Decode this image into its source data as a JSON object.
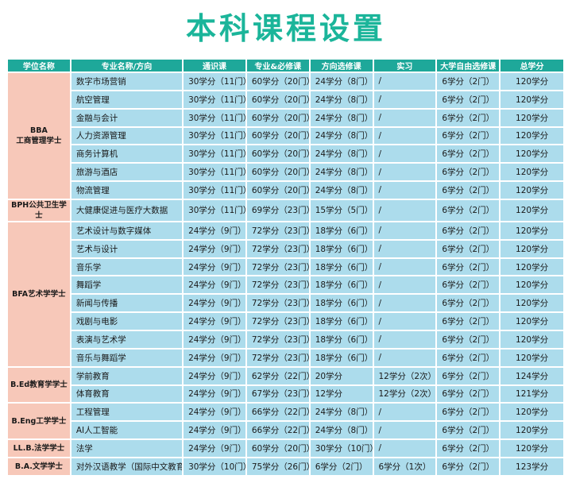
{
  "title": "本科课程设置",
  "headers": [
    "学位名称",
    "专业名称/方向",
    "通识课",
    "专业&必修课",
    "方向选修课",
    "实习",
    "大学自由选修课",
    "总学分"
  ],
  "degrees": [
    {
      "lines": [
        "BBA",
        "工商管理学士"
      ],
      "rows": [
        [
          "数字市场营销",
          "30学分（11门）",
          "60学分（20门）",
          "24学分（8门）",
          "/",
          "6学分（2门）",
          "120学分"
        ],
        [
          "航空管理",
          "30学分（11门）",
          "60学分（20门）",
          "24学分（8门）",
          "/",
          "6学分（2门）",
          "120学分"
        ],
        [
          "金融与会计",
          "30学分（11门）",
          "60学分（20门）",
          "24学分（8门）",
          "/",
          "6学分（2门）",
          "120学分"
        ],
        [
          "人力资源管理",
          "30学分（11门）",
          "60学分（20门）",
          "24学分（8门）",
          "/",
          "6学分（2门）",
          "120学分"
        ],
        [
          "商务计算机",
          "30学分（11门）",
          "60学分（20门）",
          "24学分（8门）",
          "/",
          "6学分（2门）",
          "120学分"
        ],
        [
          "旅游与酒店",
          "30学分（11门）",
          "60学分（20门）",
          "24学分（8门）",
          "/",
          "6学分（2门）",
          "120学分"
        ],
        [
          "物流管理",
          "30学分（11门）",
          "60学分（20门）",
          "24学分（8门）",
          "/",
          "6学分（2门）",
          "120学分"
        ]
      ]
    },
    {
      "lines": [
        "BPH公共卫生学士"
      ],
      "rows": [
        [
          "大健康促进与医疗大数据",
          "30学分（11门）",
          "69学分（23门）",
          "15学分（5门）",
          "/",
          "6学分（2门）",
          "120学分"
        ]
      ]
    },
    {
      "lines": [
        "BFA艺术学学士"
      ],
      "rows": [
        [
          "艺术设计与数字媒体",
          "24学分（9门）",
          "72学分（23门）",
          "18学分（6门）",
          "/",
          "6学分（2门）",
          "120学分"
        ],
        [
          "艺术与设计",
          "24学分（9门）",
          "72学分（23门）",
          "18学分（6门）",
          "/",
          "6学分（2门）",
          "120学分"
        ],
        [
          "音乐学",
          "24学分（9门）",
          "72学分（23门）",
          "18学分（6门）",
          "/",
          "6学分（2门）",
          "120学分"
        ],
        [
          "舞蹈学",
          "24学分（9门）",
          "72学分（23门）",
          "18学分（6门）",
          "/",
          "6学分（2门）",
          "120学分"
        ],
        [
          "新闻与传播",
          "24学分（9门）",
          "72学分（23门）",
          "18学分（6门）",
          "/",
          "6学分（2门）",
          "120学分"
        ],
        [
          "戏剧与电影",
          "24学分（9门）",
          "72学分（23门）",
          "18学分（6门）",
          "/",
          "6学分（2门）",
          "120学分"
        ],
        [
          "表演与艺术学",
          "24学分（9门）",
          "72学分（23门）",
          "18学分（6门）",
          "/",
          "6学分（2门）",
          "120学分"
        ],
        [
          "音乐与舞蹈学",
          "24学分（9门）",
          "72学分（23门）",
          "18学分（6门）",
          "/",
          "6学分（2门）",
          "120学分"
        ]
      ]
    },
    {
      "lines": [
        "B.Ed教育学学士"
      ],
      "rows": [
        [
          "学前教育",
          "24学分（9门）",
          "62学分（22门）",
          "20学分",
          "12学分（2次）",
          "6学分（2门）",
          "124学分"
        ],
        [
          "体育教育",
          "24学分（9门）",
          "67学分（23门）",
          "12学分",
          "12学分（2次）",
          "6学分（2门）",
          "121学分"
        ]
      ]
    },
    {
      "lines": [
        "B.Eng工学学士"
      ],
      "rows": [
        [
          "工程管理",
          "24学分（9门）",
          "66学分（22门）",
          "24学分（8门）",
          "/",
          "6学分（2门）",
          "120学分"
        ],
        [
          "AI人工智能",
          "24学分（9门）",
          "66学分（22门）",
          "24学分（8门）",
          "/",
          "6学分（2门）",
          "120学分"
        ]
      ]
    },
    {
      "lines": [
        "LL.B.法学学士"
      ],
      "rows": [
        [
          "法学",
          "24学分（9门）",
          "60学分（20门）",
          "30学分（10门）",
          "/",
          "6学分（2门）",
          "120学分"
        ]
      ]
    },
    {
      "lines": [
        "B.A.文学学士"
      ],
      "rows": [
        [
          "对外汉语教学（国际中文教育）",
          "30学分（10门）",
          "75学分（26门）",
          "6学分（2门）",
          "6学分（1次）",
          "6学分（2门）",
          "123学分"
        ]
      ]
    }
  ]
}
